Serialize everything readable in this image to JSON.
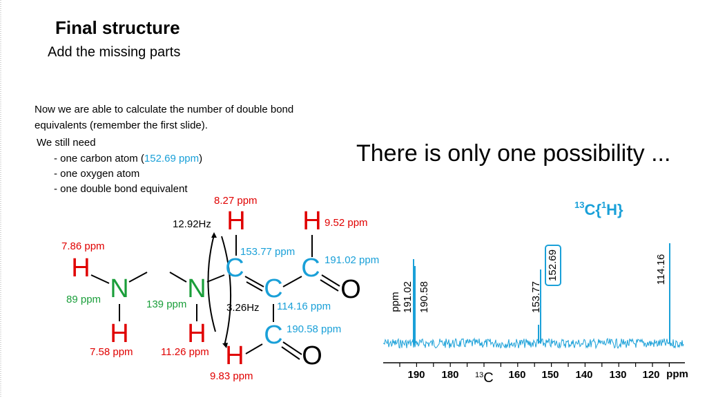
{
  "header": {
    "title": "Final structure",
    "subtitle": "Add the missing parts"
  },
  "body": {
    "intro": [
      "Now we are able to calculate the number of double bond",
      "equivalents (remember the first slide)."
    ],
    "still_need": "We still need",
    "items": [
      {
        "prefix": "- one carbon atom (",
        "value": "152.69 ppm",
        "suffix": ")"
      },
      "- one oxygen atom",
      "- one double bond equivalent"
    ],
    "conclusion": "There is only one possibility ..."
  },
  "structure": {
    "atoms": [
      "H",
      "N",
      "H",
      "N",
      "H",
      "H",
      "C",
      "C",
      "C",
      "H",
      "O",
      "C",
      "O",
      "H"
    ],
    "labels": [
      "8.27 ppm",
      "12.92Hz",
      "9.52 ppm",
      "7.86 ppm",
      "153.77 ppm",
      "191.02 ppm",
      "89 ppm",
      "139 ppm",
      "3.26Hz",
      "114.16 ppm",
      "190.58 ppm",
      "7.58 ppm",
      "11.26 ppm",
      "9.83 ppm"
    ]
  },
  "spectrum": {
    "title": {
      "mass": "13",
      "element": "C{",
      "decoupled_mass": "1",
      "decoupled": "H}"
    },
    "axis_unit_side": "ppm",
    "peaks": [
      "191.02",
      "190.58",
      "153.77",
      "152.69",
      "114.16"
    ],
    "ticks": [
      "190",
      "180",
      "160",
      "150",
      "140",
      "130",
      "120"
    ],
    "axis_unit": "ppm",
    "axis_nucleus_mass": "13",
    "axis_nucleus": "C"
  }
}
